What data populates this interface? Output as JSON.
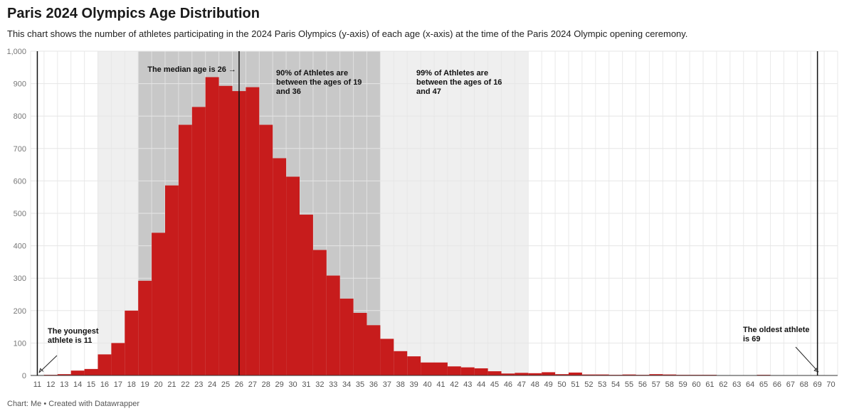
{
  "header": {
    "title": "Paris 2024 Olympics Age Distribution",
    "subtitle": "This chart shows the number of athletes participating in the 2024 Paris Olympics (y-axis) of each age (x-axis) at the time of the Paris 2024 Olympic opening ceremony."
  },
  "footer": {
    "credit": "Chart: Me • Created with Datawrapper"
  },
  "colors": {
    "bar": "#c71c1c",
    "band90": "#c8c8c8",
    "band99": "#efefef",
    "grid": "#e6e6e6"
  },
  "chart_data": {
    "type": "bar",
    "title": "Paris 2024 Olympics Age Distribution",
    "xlabel": "",
    "ylabel": "",
    "x": [
      11,
      12,
      13,
      14,
      15,
      16,
      17,
      18,
      19,
      20,
      21,
      22,
      23,
      24,
      25,
      26,
      27,
      28,
      29,
      30,
      31,
      32,
      33,
      34,
      35,
      36,
      37,
      38,
      39,
      40,
      41,
      42,
      43,
      44,
      45,
      46,
      47,
      48,
      49,
      50,
      51,
      52,
      53,
      54,
      55,
      56,
      57,
      58,
      59,
      60,
      61,
      62,
      63,
      64,
      65,
      66,
      67,
      68,
      69,
      70
    ],
    "values": [
      1,
      2,
      4,
      15,
      20,
      65,
      100,
      200,
      292,
      440,
      586,
      773,
      828,
      920,
      893,
      877,
      889,
      773,
      670,
      613,
      496,
      387,
      308,
      237,
      193,
      155,
      113,
      75,
      59,
      40,
      40,
      28,
      25,
      22,
      13,
      6,
      8,
      7,
      10,
      4,
      9,
      3,
      3,
      2,
      3,
      2,
      4,
      3,
      2,
      2,
      2,
      1,
      1,
      1,
      2,
      1,
      1,
      1,
      1,
      0
    ],
    "ylim": [
      0,
      1000
    ],
    "yticks": [
      "0",
      "100",
      "200",
      "300",
      "400",
      "500",
      "600",
      "700",
      "800",
      "900",
      "1,000"
    ],
    "xticks": [
      "11",
      "12",
      "13",
      "14",
      "15",
      "16",
      "17",
      "18",
      "19",
      "20",
      "21",
      "22",
      "23",
      "24",
      "25",
      "26",
      "27",
      "28",
      "29",
      "30",
      "31",
      "32",
      "33",
      "34",
      "35",
      "36",
      "37",
      "38",
      "39",
      "40",
      "41",
      "42",
      "43",
      "44",
      "45",
      "46",
      "47",
      "48",
      "49",
      "50",
      "51",
      "52",
      "53",
      "54",
      "55",
      "56",
      "57",
      "58",
      "59",
      "60",
      "61",
      "62",
      "63",
      "64",
      "65",
      "66",
      "67",
      "68",
      "69",
      "70"
    ],
    "grid": true,
    "bands": [
      {
        "from": 16,
        "to": 47,
        "level": "99%"
      },
      {
        "from": 19,
        "to": 36,
        "level": "90%"
      }
    ],
    "markers": [
      26,
      69
    ],
    "annotations": {
      "median": "The median age is 26 →",
      "band90": [
        "90% of Athletes are",
        "between the ages of 19",
        "and 36"
      ],
      "band99": [
        "99% of Athletes are",
        "between the ages of 16",
        "and 47"
      ],
      "youngest": [
        "The youngest",
        "athlete is 11"
      ],
      "oldest": [
        "The oldest athlete",
        "is 69"
      ]
    }
  }
}
